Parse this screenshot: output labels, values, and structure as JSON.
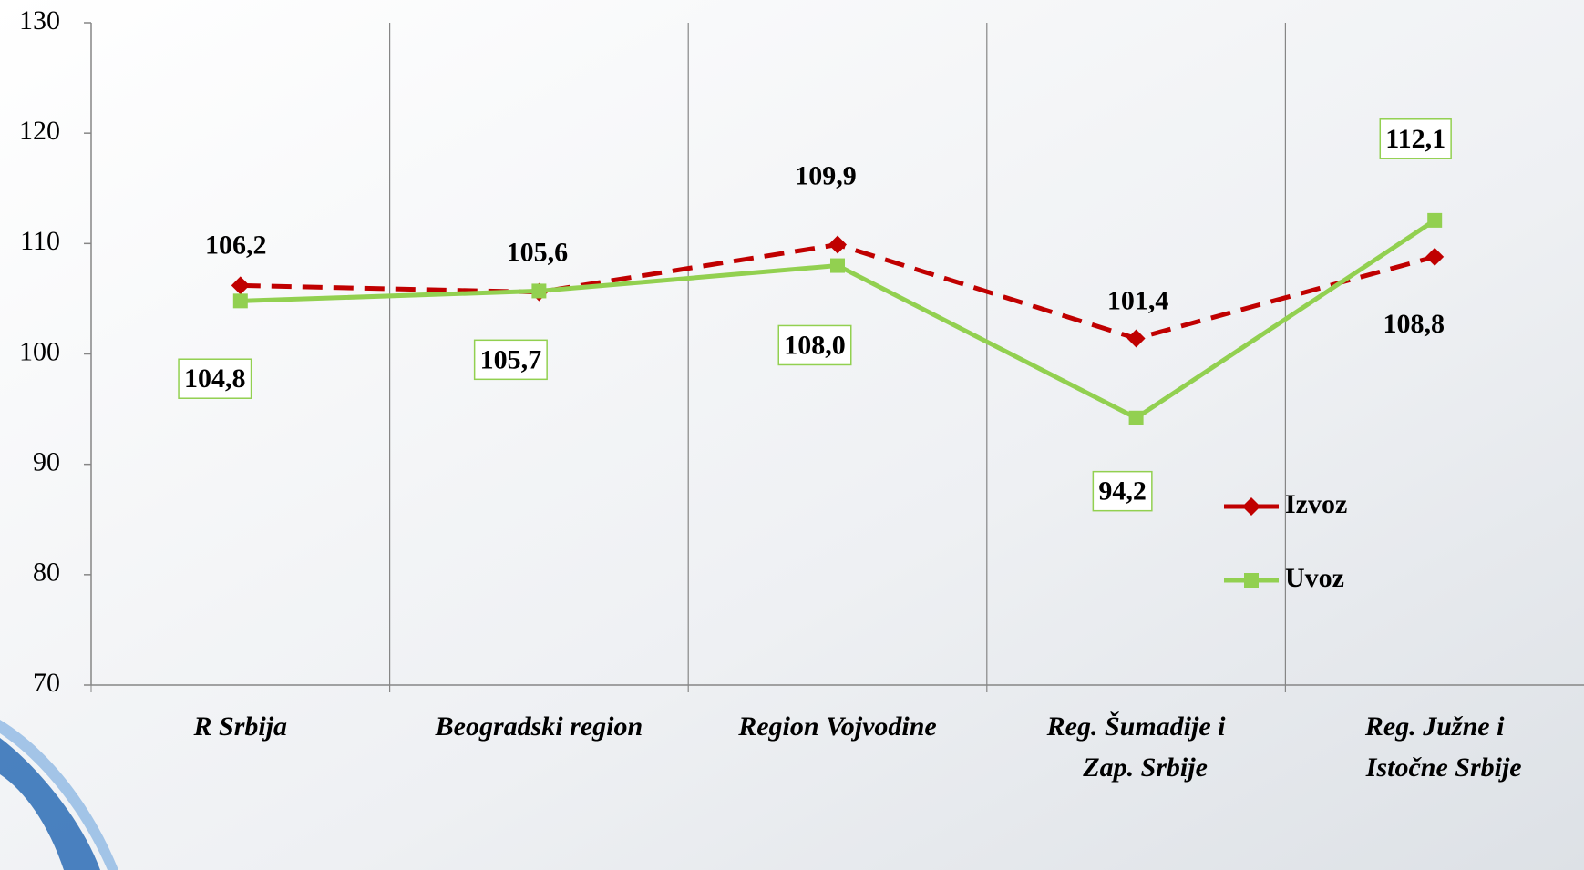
{
  "chart_data": {
    "type": "line",
    "categories": [
      "R Srbija",
      "Beogradski region",
      "Region Vojvodine",
      "Reg. Šumadije i\nZap. Srbije",
      "Reg. Južne i\nIstočne Srbije"
    ],
    "series": [
      {
        "name": "Izvoz",
        "color": "#c00000",
        "dash": true,
        "marker": "diamond",
        "values": [
          106.2,
          105.6,
          109.9,
          101.4,
          108.8
        ],
        "value_labels": [
          "106,2",
          "105,6",
          "109,9",
          "101,4",
          "108,8"
        ]
      },
      {
        "name": "Uvoz",
        "color": "#92d050",
        "dash": false,
        "marker": "square",
        "values": [
          104.8,
          105.7,
          108.0,
          94.2,
          112.1
        ],
        "value_labels": [
          "104,8",
          "105,7",
          "108,0",
          "94,2",
          "112,1"
        ]
      }
    ],
    "ylim": [
      70,
      130
    ],
    "yticks": [
      70,
      80,
      90,
      100,
      110,
      120,
      130
    ],
    "legend": "right"
  }
}
